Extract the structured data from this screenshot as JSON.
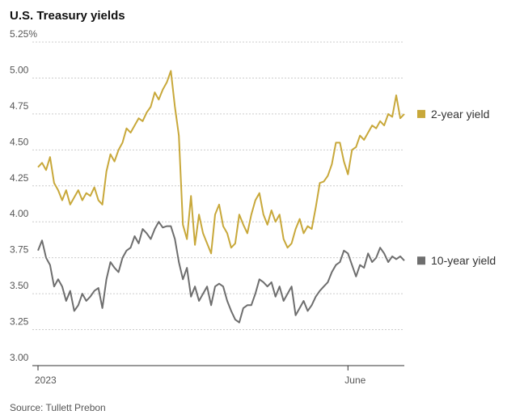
{
  "chart_data": {
    "type": "line",
    "title": "U.S. Treasury yields",
    "source": "Source: Tullett Prebon",
    "categories": [
      "2023",
      null,
      null,
      null,
      null,
      null,
      null,
      null,
      null,
      null,
      null,
      null,
      null,
      null,
      null,
      null,
      null,
      null,
      null,
      null,
      null,
      null,
      null,
      null,
      null,
      null,
      null,
      null,
      null,
      null,
      null,
      null,
      null,
      null,
      null,
      null,
      null,
      null,
      null,
      null,
      null,
      null,
      null,
      null,
      null,
      null,
      null,
      null,
      null,
      null,
      null,
      null,
      null,
      null,
      null,
      null,
      null,
      null,
      null,
      null,
      null,
      null,
      null,
      null,
      null,
      null,
      null,
      null,
      null,
      null,
      null,
      null,
      null,
      null,
      null,
      null,
      null,
      "June",
      null,
      null,
      null,
      null,
      null,
      null,
      null,
      null,
      null,
      null,
      null,
      null,
      null,
      null
    ],
    "series": [
      {
        "name": "2-year yield",
        "color": "#c8a83a",
        "values": [
          4.38,
          4.41,
          4.36,
          4.45,
          4.27,
          4.22,
          4.15,
          4.22,
          4.12,
          4.17,
          4.22,
          4.15,
          4.2,
          4.18,
          4.24,
          4.15,
          4.12,
          4.35,
          4.47,
          4.42,
          4.5,
          4.55,
          4.65,
          4.62,
          4.67,
          4.72,
          4.7,
          4.76,
          4.8,
          4.9,
          4.85,
          4.92,
          4.97,
          5.05,
          4.8,
          4.6,
          3.98,
          3.88,
          4.18,
          3.84,
          4.05,
          3.92,
          3.85,
          3.78,
          4.05,
          4.12,
          3.97,
          3.92,
          3.82,
          3.85,
          4.05,
          3.98,
          3.92,
          4.05,
          4.15,
          4.2,
          4.05,
          3.98,
          4.08,
          4.0,
          4.05,
          3.88,
          3.82,
          3.85,
          3.95,
          4.02,
          3.92,
          3.97,
          3.95,
          4.1,
          4.27,
          4.28,
          4.32,
          4.4,
          4.55,
          4.55,
          4.42,
          4.33,
          4.5,
          4.52,
          4.6,
          4.57,
          4.62,
          4.67,
          4.65,
          4.7,
          4.67,
          4.75,
          4.73,
          4.88,
          4.72,
          4.75
        ]
      },
      {
        "name": "10-year yield",
        "color": "#6e6e6e",
        "values": [
          3.8,
          3.87,
          3.75,
          3.7,
          3.55,
          3.6,
          3.55,
          3.45,
          3.52,
          3.38,
          3.42,
          3.5,
          3.45,
          3.48,
          3.52,
          3.54,
          3.4,
          3.6,
          3.72,
          3.68,
          3.65,
          3.75,
          3.8,
          3.82,
          3.9,
          3.85,
          3.95,
          3.92,
          3.88,
          3.95,
          4.0,
          3.96,
          3.97,
          3.97,
          3.88,
          3.72,
          3.6,
          3.68,
          3.48,
          3.55,
          3.45,
          3.5,
          3.55,
          3.42,
          3.55,
          3.57,
          3.55,
          3.45,
          3.38,
          3.32,
          3.3,
          3.4,
          3.42,
          3.42,
          3.5,
          3.6,
          3.58,
          3.55,
          3.58,
          3.48,
          3.55,
          3.45,
          3.5,
          3.55,
          3.35,
          3.4,
          3.45,
          3.38,
          3.42,
          3.48,
          3.52,
          3.55,
          3.58,
          3.65,
          3.7,
          3.72,
          3.8,
          3.78,
          3.7,
          3.62,
          3.7,
          3.68,
          3.78,
          3.72,
          3.75,
          3.82,
          3.78,
          3.72,
          3.76,
          3.74,
          3.76,
          3.73
        ]
      }
    ],
    "ylim": [
      3,
      5.25
    ],
    "yticks": [
      {
        "value": 3,
        "label": "3.00"
      },
      3.25,
      {
        "value": 3.5,
        "label": "3.50"
      },
      3.75,
      {
        "value": 4,
        "label": "4.00"
      },
      4.25,
      {
        "value": 4.5,
        "label": "4.50"
      },
      4.75,
      {
        "value": 5,
        "label": "5.00"
      },
      {
        "value": 5.25,
        "label": "5.25%"
      }
    ],
    "grid": true
  }
}
